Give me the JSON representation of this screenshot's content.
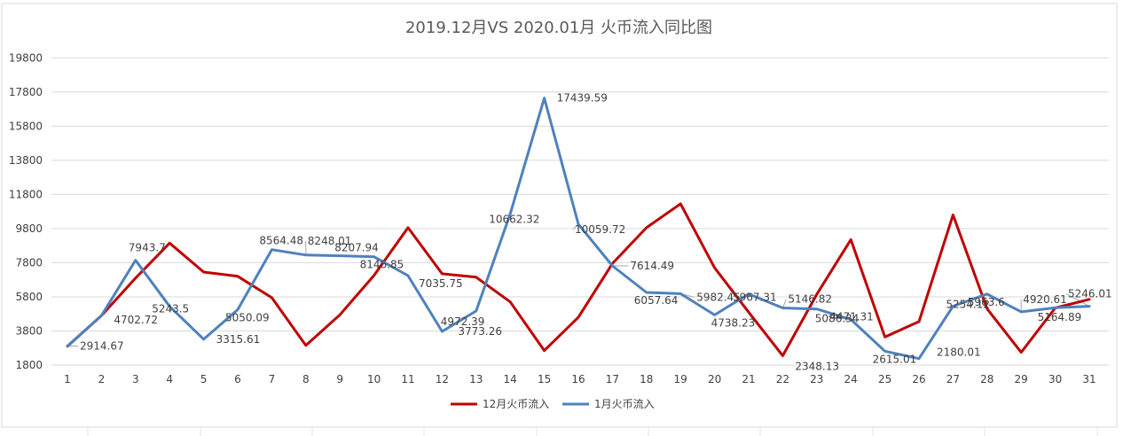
{
  "chart_data": {
    "type": "line",
    "title": "2019.12月VS 2020.01月 火币流入同比图",
    "categories": [
      "1",
      "2",
      "3",
      "4",
      "5",
      "6",
      "7",
      "8",
      "9",
      "10",
      "11",
      "12",
      "13",
      "14",
      "15",
      "16",
      "17",
      "18",
      "19",
      "20",
      "21",
      "22",
      "23",
      "24",
      "25",
      "26",
      "27",
      "28",
      "29",
      "30",
      "31"
    ],
    "yticks": [
      1800,
      3800,
      5800,
      7800,
      9800,
      11800,
      13800,
      15800,
      17800,
      19800
    ],
    "ylim": [
      1800,
      20800
    ],
    "grid": true,
    "legend_position": "bottom",
    "series": [
      {
        "name": "12月火币流入",
        "color": "#c00000",
        "values": [
          2900,
          4700,
          6900,
          8950,
          7250,
          7000,
          5750,
          2950,
          4750,
          7050,
          9850,
          7150,
          6950,
          5500,
          2650,
          4600,
          7750,
          9850,
          11250,
          7500,
          4900,
          2348.13,
          5950,
          9150,
          3450,
          4350,
          10600,
          5100,
          2550,
          5150,
          5650
        ]
      },
      {
        "name": "1月火币流入",
        "color": "#4f81bd",
        "values": [
          2914.67,
          4702.72,
          7943.7,
          5243.5,
          3315.61,
          5050.09,
          8564.48,
          8248.01,
          8207.94,
          8146.85,
          7035.75,
          3773.26,
          4972.39,
          10662.32,
          17439.59,
          10059.72,
          7614.49,
          6057.64,
          5982.45,
          4738.23,
          5967.31,
          5146.82,
          5086.34,
          4471.31,
          2615.01,
          2180.01,
          5254.12,
          5963.6,
          4920.61,
          5164.89,
          5246.01
        ]
      }
    ],
    "data_labels": [
      {
        "series": 0,
        "index": 21,
        "text": "2348.13"
      },
      {
        "series": 1,
        "index": 0,
        "text": "2914.67"
      },
      {
        "series": 1,
        "index": 1,
        "text": "4702.72"
      },
      {
        "series": 1,
        "index": 2,
        "text": "7943.7"
      },
      {
        "series": 1,
        "index": 3,
        "text": "5243.5"
      },
      {
        "series": 1,
        "index": 4,
        "text": "3315.61"
      },
      {
        "series": 1,
        "index": 5,
        "text": "5050.09"
      },
      {
        "series": 1,
        "index": 6,
        "text": "8564.48"
      },
      {
        "series": 1,
        "index": 7,
        "text": "8248.01"
      },
      {
        "series": 1,
        "index": 8,
        "text": "8207.94"
      },
      {
        "series": 1,
        "index": 9,
        "text": "8146.85"
      },
      {
        "series": 1,
        "index": 10,
        "text": "7035.75"
      },
      {
        "series": 1,
        "index": 11,
        "text": "3773.26"
      },
      {
        "series": 1,
        "index": 12,
        "text": "4972.39"
      },
      {
        "series": 1,
        "index": 13,
        "text": "10662.32"
      },
      {
        "series": 1,
        "index": 14,
        "text": "17439.59"
      },
      {
        "series": 1,
        "index": 15,
        "text": "10059.72"
      },
      {
        "series": 1,
        "index": 16,
        "text": "7614.49"
      },
      {
        "series": 1,
        "index": 17,
        "text": "6057.64"
      },
      {
        "series": 1,
        "index": 18,
        "text": "5982.45"
      },
      {
        "series": 1,
        "index": 19,
        "text": "4738.23"
      },
      {
        "series": 1,
        "index": 20,
        "text": "5967.31"
      },
      {
        "series": 1,
        "index": 21,
        "text": "5146.82"
      },
      {
        "series": 1,
        "index": 22,
        "text": "5086.34"
      },
      {
        "series": 1,
        "index": 23,
        "text": "4471.31"
      },
      {
        "series": 1,
        "index": 24,
        "text": "2615.01"
      },
      {
        "series": 1,
        "index": 25,
        "text": "2180.01"
      },
      {
        "series": 1,
        "index": 26,
        "text": "5254.12"
      },
      {
        "series": 1,
        "index": 27,
        "text": "5963.6"
      },
      {
        "series": 1,
        "index": 28,
        "text": "4920.61"
      },
      {
        "series": 1,
        "index": 29,
        "text": "5164.89"
      },
      {
        "series": 1,
        "index": 30,
        "text": "5246.01"
      }
    ]
  }
}
